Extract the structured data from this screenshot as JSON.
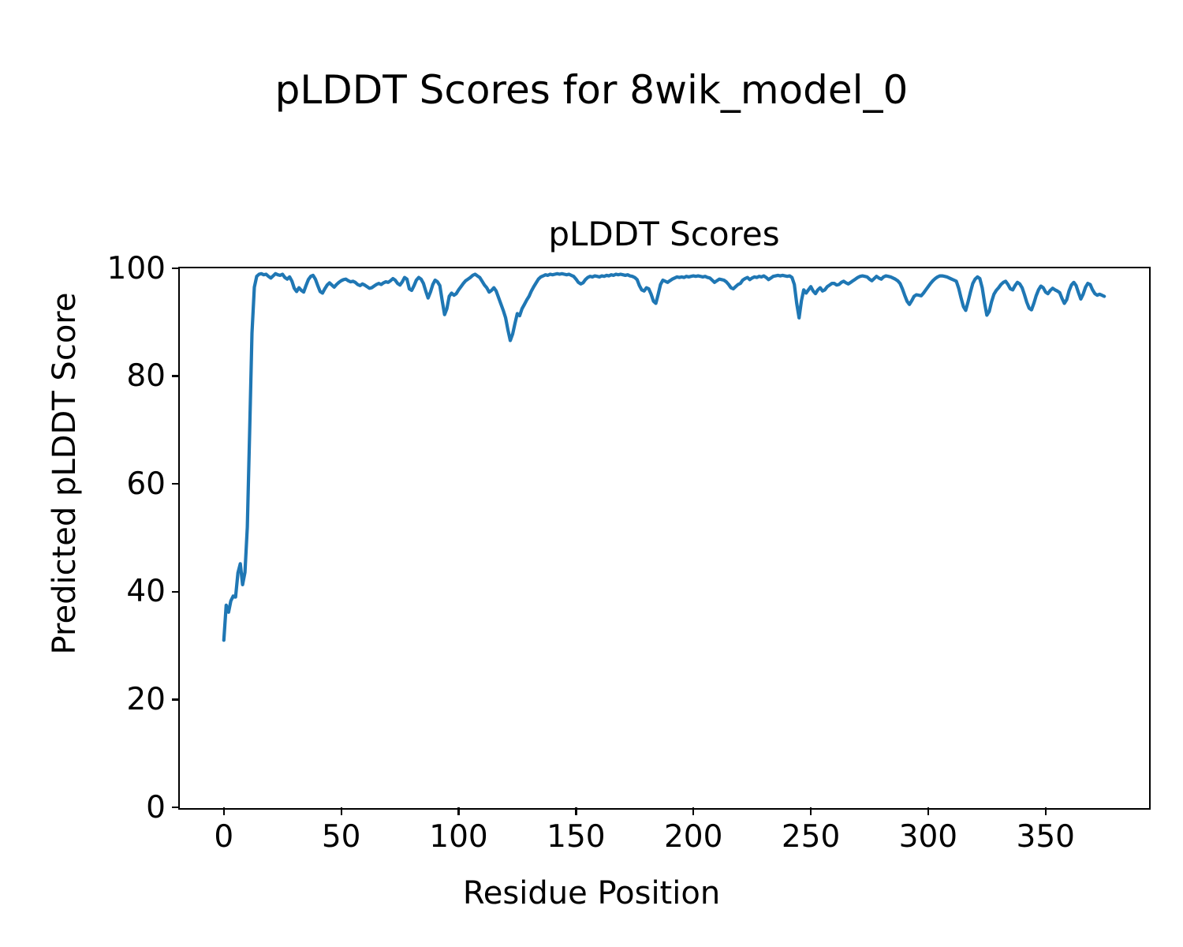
{
  "figure": {
    "suptitle": "pLDDT Scores for 8wik_model_0",
    "axes_title": "pLDDT Scores",
    "xlabel": "Residue Position",
    "ylabel": "Predicted pLDDT Score"
  },
  "chart_data": {
    "type": "line",
    "title": "pLDDT Scores",
    "suptitle": "pLDDT Scores for 8wik_model_0",
    "xlabel": "Residue Position",
    "ylabel": "Predicted pLDDT Score",
    "xlim": [
      -18.75,
      393.75
    ],
    "ylim": [
      0,
      100
    ],
    "xticks": [
      0,
      50,
      100,
      150,
      200,
      250,
      300,
      350
    ],
    "yticks": [
      0,
      20,
      40,
      60,
      80,
      100
    ],
    "grid": false,
    "legend_shown": false,
    "line_color": "#1f77b4",
    "background_color": "#ffffff",
    "series": [
      {
        "name": "pLDDT",
        "x_start": 0,
        "x_step": 1,
        "values": [
          31.0,
          37.5,
          36.2,
          38.3,
          39.2,
          39.0,
          43.5,
          45.2,
          41.3,
          43.6,
          52.0,
          70.0,
          88.0,
          96.5,
          98.5,
          98.9,
          99.0,
          98.8,
          98.9,
          98.5,
          98.2,
          98.6,
          99.0,
          98.8,
          98.7,
          98.9,
          98.3,
          98.0,
          98.4,
          97.6,
          96.3,
          95.7,
          96.4,
          95.9,
          95.6,
          96.8,
          97.9,
          98.5,
          98.7,
          98.0,
          96.8,
          95.7,
          95.4,
          96.2,
          96.9,
          97.3,
          96.9,
          96.5,
          97.0,
          97.4,
          97.7,
          97.9,
          98.0,
          97.7,
          97.5,
          97.6,
          97.4,
          97.0,
          96.8,
          97.1,
          96.9,
          96.6,
          96.3,
          96.4,
          96.7,
          97.0,
          97.2,
          97.0,
          97.3,
          97.5,
          97.4,
          97.7,
          98.1,
          97.8,
          97.2,
          96.9,
          97.5,
          98.3,
          98.0,
          96.2,
          95.9,
          96.8,
          97.8,
          98.3,
          98.0,
          97.2,
          95.8,
          94.5,
          95.6,
          97.0,
          97.8,
          97.5,
          96.8,
          94.0,
          91.4,
          92.5,
          94.8,
          95.4,
          95.0,
          95.3,
          96.0,
          96.6,
          97.2,
          97.7,
          98.0,
          98.3,
          98.7,
          98.9,
          98.6,
          98.3,
          97.6,
          96.9,
          96.4,
          95.6,
          95.9,
          96.4,
          95.8,
          94.6,
          93.4,
          92.2,
          90.8,
          88.6,
          86.6,
          87.8,
          89.8,
          91.6,
          91.2,
          92.5,
          93.3,
          94.1,
          94.8,
          95.8,
          96.6,
          97.3,
          98.0,
          98.4,
          98.6,
          98.8,
          98.7,
          98.9,
          98.8,
          98.9,
          99.0,
          98.9,
          99.0,
          98.9,
          98.8,
          98.9,
          98.7,
          98.5,
          98.0,
          97.4,
          97.1,
          97.3,
          97.9,
          98.3,
          98.5,
          98.4,
          98.6,
          98.5,
          98.4,
          98.6,
          98.5,
          98.7,
          98.6,
          98.8,
          98.7,
          98.9,
          98.8,
          98.9,
          98.8,
          98.7,
          98.8,
          98.6,
          98.5,
          98.3,
          97.9,
          96.8,
          96.0,
          95.8,
          96.4,
          96.2,
          95.2,
          93.9,
          93.5,
          95.2,
          97.0,
          97.8,
          97.6,
          97.4,
          97.7,
          98.0,
          98.2,
          98.4,
          98.3,
          98.4,
          98.3,
          98.5,
          98.4,
          98.5,
          98.6,
          98.5,
          98.6,
          98.5,
          98.4,
          98.5,
          98.3,
          98.2,
          97.8,
          97.4,
          97.7,
          98.0,
          97.9,
          97.8,
          97.5,
          97.0,
          96.4,
          96.2,
          96.6,
          97.0,
          97.2,
          97.8,
          98.1,
          98.3,
          97.9,
          98.2,
          98.4,
          98.3,
          98.5,
          98.4,
          98.6,
          98.3,
          97.9,
          98.2,
          98.5,
          98.6,
          98.7,
          98.6,
          98.7,
          98.6,
          98.5,
          98.6,
          98.3,
          97.0,
          93.5,
          90.8,
          94.0,
          96.0,
          95.4,
          96.0,
          96.6,
          95.8,
          95.3,
          96.0,
          96.4,
          95.8,
          96.0,
          96.6,
          96.9,
          97.2,
          97.2,
          96.9,
          97.0,
          97.4,
          97.6,
          97.3,
          97.1,
          97.4,
          97.7,
          98.0,
          98.3,
          98.5,
          98.6,
          98.5,
          98.4,
          98.0,
          97.7,
          98.1,
          98.5,
          98.2,
          98.0,
          98.4,
          98.6,
          98.5,
          98.4,
          98.2,
          98.0,
          97.7,
          97.2,
          96.2,
          95.0,
          93.9,
          93.3,
          94.0,
          94.8,
          95.1,
          95.0,
          94.9,
          95.4,
          96.0,
          96.6,
          97.2,
          97.7,
          98.1,
          98.4,
          98.6,
          98.6,
          98.5,
          98.4,
          98.2,
          98.0,
          97.8,
          97.6,
          96.3,
          94.5,
          92.9,
          92.2,
          93.8,
          95.6,
          97.2,
          98.0,
          98.4,
          98.1,
          96.4,
          93.6,
          91.3,
          92.0,
          93.8,
          95.2,
          95.9,
          96.4,
          97.0,
          97.4,
          97.6,
          97.0,
          96.2,
          96.0,
          96.8,
          97.4,
          97.1,
          96.4,
          95.1,
          93.7,
          92.6,
          92.3,
          93.5,
          94.9,
          96.0,
          96.7,
          96.4,
          95.6,
          95.3,
          95.9,
          96.3,
          96.0,
          95.8,
          95.5,
          94.4,
          93.5,
          94.2,
          95.8,
          96.9,
          97.4,
          96.8,
          95.5,
          94.3,
          95.2,
          96.5,
          97.2,
          97.0,
          96.0,
          95.3,
          95.0,
          95.2,
          95.0,
          94.8
        ]
      }
    ]
  }
}
